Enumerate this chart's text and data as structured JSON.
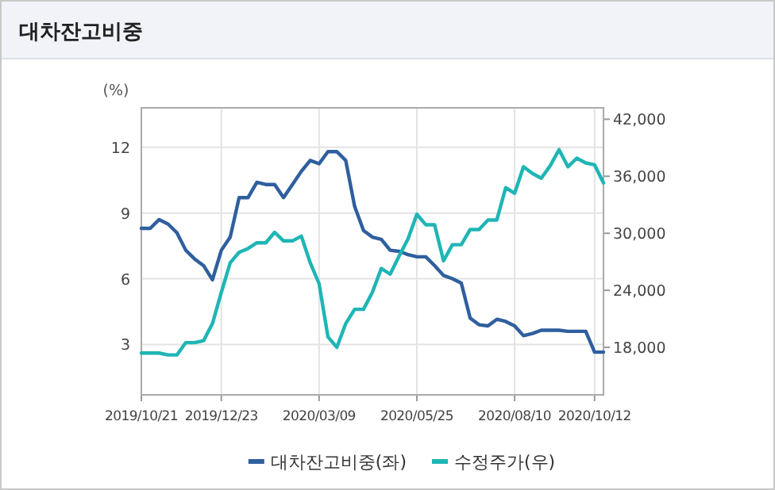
{
  "chart_data": {
    "type": "line",
    "title": "대차잔고비중",
    "ylabel": "(%)",
    "x": [
      "2019-10-21",
      "2019-10-28",
      "2019-11-04",
      "2019-11-11",
      "2019-11-18",
      "2019-11-25",
      "2019-12-02",
      "2019-12-09",
      "2019-12-16",
      "2019-12-23",
      "2019-12-30",
      "2020-01-06",
      "2020-01-13",
      "2020-01-20",
      "2020-01-27",
      "2020-02-03",
      "2020-02-10",
      "2020-02-17",
      "2020-02-24",
      "2020-03-02",
      "2020-03-09",
      "2020-03-16",
      "2020-03-23",
      "2020-03-30",
      "2020-04-06",
      "2020-04-13",
      "2020-04-20",
      "2020-04-27",
      "2020-05-04",
      "2020-05-11",
      "2020-05-18",
      "2020-05-25",
      "2020-06-01",
      "2020-06-08",
      "2020-06-15",
      "2020-06-22",
      "2020-06-29",
      "2020-07-06",
      "2020-07-13",
      "2020-07-20",
      "2020-07-27",
      "2020-08-03",
      "2020-08-10",
      "2020-08-17",
      "2020-08-24",
      "2020-08-31",
      "2020-09-07",
      "2020-09-14",
      "2020-09-21",
      "2020-09-28",
      "2020-10-05",
      "2020-10-12",
      "2020-10-19"
    ],
    "series": [
      {
        "name": "대차잔고비중(좌)",
        "color": "#2f5f9e",
        "values": [
          8.3,
          8.3,
          8.7,
          8.5,
          8.1,
          7.3,
          6.9,
          6.6,
          5.95,
          7.3,
          7.9,
          9.7,
          9.7,
          10.4,
          10.3,
          10.3,
          9.7,
          10.3,
          10.9,
          11.4,
          11.25,
          11.8,
          11.8,
          11.4,
          9.3,
          8.2,
          7.9,
          7.8,
          7.3,
          7.25,
          7.1,
          7.0,
          7.0,
          6.6,
          6.15,
          6.0,
          5.8,
          4.2,
          3.9,
          3.85,
          4.15,
          4.05,
          3.85,
          3.4,
          3.5,
          3.65,
          3.65,
          3.65,
          3.6,
          3.6,
          3.6,
          2.65,
          2.65
        ]
      },
      {
        "name": "수정주가(우)",
        "color": "#1fb5b5",
        "axis": "y2",
        "values": [
          17400,
          17400,
          17400,
          17200,
          17200,
          18500,
          18500,
          18700,
          20500,
          23800,
          26900,
          28000,
          28400,
          29000,
          29000,
          30100,
          29200,
          29200,
          29700,
          26900,
          24700,
          19100,
          18000,
          20500,
          22000,
          22000,
          23800,
          26300,
          25700,
          27600,
          29400,
          32000,
          30900,
          30900,
          27100,
          28800,
          28800,
          30400,
          30400,
          31400,
          31400,
          34800,
          34200,
          37000,
          36300,
          35800,
          37100,
          38800,
          37000,
          37900,
          37400,
          37200,
          35300
        ]
      }
    ],
    "xlim": [
      "2019-10-21",
      "2020-10-19"
    ],
    "xticks": [
      {
        "value": "2019-10-21",
        "label": "2019/10/21"
      },
      {
        "value": "2019-12-23",
        "label": "2019/12/23"
      },
      {
        "value": "2020-03-09",
        "label": "2020/03/09"
      },
      {
        "value": "2020-05-25",
        "label": "2020/05/25"
      },
      {
        "value": "2020-08-10",
        "label": "2020/08/10"
      },
      {
        "value": "2020-10-12",
        "label": "2020/10/12"
      }
    ],
    "ylim": [
      0.7,
      13.8
    ],
    "yticks": [
      3,
      6,
      9,
      12
    ],
    "y2lim": [
      13000,
      43200
    ],
    "y2ticks": [
      {
        "value": 18000,
        "label": "18,000"
      },
      {
        "value": 24000,
        "label": "24,000"
      },
      {
        "value": 30000,
        "label": "30,000"
      },
      {
        "value": 36000,
        "label": "36,000"
      },
      {
        "value": 42000,
        "label": "42,000"
      }
    ],
    "grid": true,
    "legend": "bottom"
  }
}
